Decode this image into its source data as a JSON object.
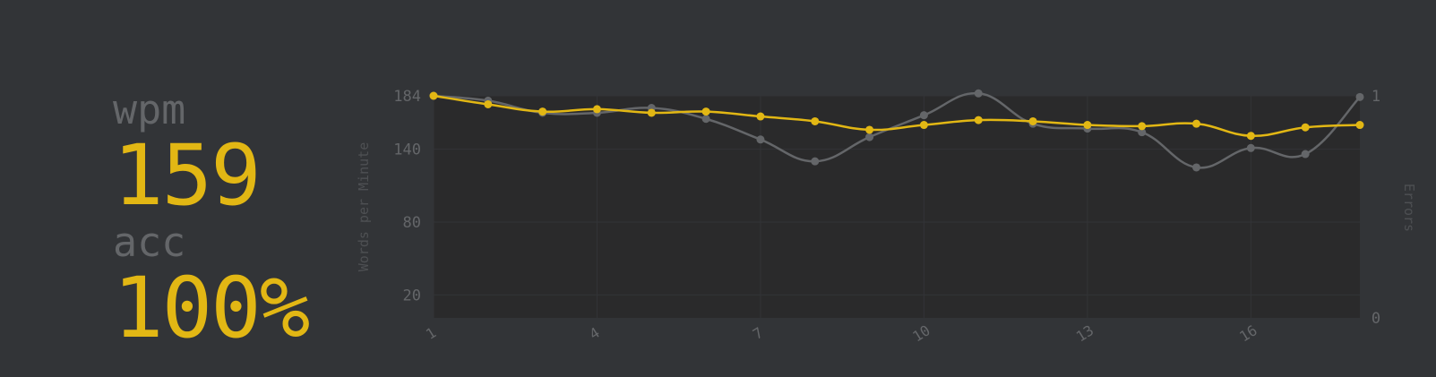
{
  "stats": {
    "wpm_label": "wpm",
    "wpm_value": "159",
    "acc_label": "acc",
    "acc_value": "100%"
  },
  "colors": {
    "background": "#323437",
    "plot_background": "#2a2a2b",
    "accent": "#e2b714",
    "raw": "#646669",
    "sub": "#646669"
  },
  "chart_data": {
    "type": "line",
    "x": [
      1,
      2,
      3,
      4,
      5,
      6,
      7,
      8,
      9,
      10,
      11,
      12,
      13,
      14,
      15,
      16,
      17,
      18
    ],
    "x_ticks": [
      "1",
      "4",
      "7",
      "10",
      "13",
      "16"
    ],
    "xlim": [
      1,
      18
    ],
    "ylabel": "Words per Minute",
    "y_ticks": [
      20,
      80,
      140,
      184
    ],
    "ylim": [
      1,
      184
    ],
    "y2label": "Errors",
    "y2_ticks": [
      0,
      1
    ],
    "y2lim": [
      0,
      1
    ],
    "grid": true,
    "fill": true,
    "series": [
      {
        "key": "raw",
        "color": "#646669",
        "values": [
          184,
          180,
          170,
          170,
          174,
          165,
          148,
          130,
          150,
          168,
          186,
          161,
          157,
          154,
          125,
          141,
          136,
          183
        ]
      },
      {
        "key": "wpm",
        "color": "#e2b714",
        "values": [
          184,
          177,
          171,
          173,
          170,
          171,
          167,
          163,
          156,
          160,
          164,
          163,
          160,
          159,
          161,
          151,
          158,
          160
        ]
      }
    ]
  }
}
